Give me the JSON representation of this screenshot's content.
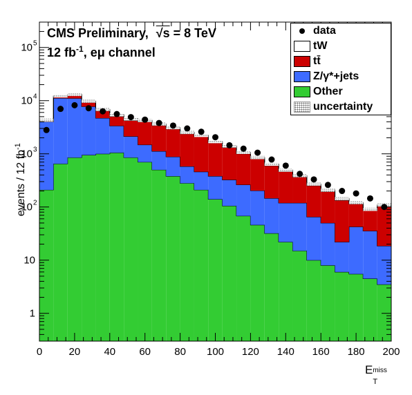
{
  "header": {
    "title_left": "CMS Preliminary,",
    "title_sqrt": "√s",
    "title_right": "= 8 TeV",
    "lumi": "12 fb",
    "lumi_exp": "-1",
    "channel": ", eμ channel"
  },
  "axes": {
    "ylabel": "events / 12 fb",
    "ylabel_exp": "-1",
    "xlabel_main": "E",
    "xlabel_sub": "T",
    "xlabel_sup": "miss"
  },
  "legend": {
    "items": [
      {
        "label": "data",
        "key": "marker"
      },
      {
        "label": "tW",
        "key": "box",
        "color": "#ffffff"
      },
      {
        "label": "tt̄",
        "key": "box",
        "color": "#cc0000"
      },
      {
        "label": "Z/γ*+jets",
        "key": "box",
        "color": "#3d6bff"
      },
      {
        "label": "Other",
        "key": "box",
        "color": "#33cc33"
      },
      {
        "label": "uncertainty",
        "key": "hatch"
      }
    ]
  },
  "chart_data": {
    "type": "bar",
    "title": "CMS Preliminary, √s = 8 TeV",
    "xlabel": "E_T^miss",
    "ylabel": "events / 12 fb^-1",
    "xlim": [
      0,
      200
    ],
    "ylim": [
      0.3,
      300000
    ],
    "yscale": "log",
    "bin_edges": [
      0,
      8,
      16,
      24,
      32,
      40,
      48,
      56,
      64,
      72,
      80,
      88,
      96,
      104,
      112,
      120,
      128,
      136,
      144,
      152,
      160,
      168,
      176,
      184,
      192,
      200
    ],
    "stack_order": [
      "Other",
      "Z/γ*+jets",
      "tt̄",
      "tW"
    ],
    "series": [
      {
        "name": "Other",
        "color": "#33cc33",
        "values": [
          210,
          650,
          850,
          950,
          1000,
          1050,
          850,
          700,
          500,
          380,
          280,
          210,
          140,
          105,
          68,
          46,
          32,
          22,
          15,
          10,
          8,
          6,
          5.5,
          4.5,
          3.5
        ]
      },
      {
        "name": "Z/γ*+jets",
        "color": "#3d6bff",
        "values": [
          3800,
          10500,
          10200,
          6800,
          3700,
          2300,
          1280,
          780,
          620,
          500,
          300,
          250,
          240,
          220,
          194,
          157,
          114,
          97,
          104,
          55,
          42,
          16,
          37,
          31,
          15
        ]
      },
      {
        "name": "tt̄",
        "color": "#cc0000",
        "values": [
          150,
          700,
          1500,
          1500,
          1700,
          1700,
          2100,
          2500,
          2300,
          2050,
          1800,
          1640,
          1220,
          995,
          740,
          600,
          454,
          346,
          248,
          188,
          145,
          112,
          72,
          50,
          85
        ]
      },
      {
        "name": "tW",
        "color": "#ffffff",
        "values": [
          140,
          450,
          550,
          550,
          450,
          400,
          350,
          280,
          230,
          180,
          150,
          120,
          100,
          90,
          68,
          50,
          40,
          30,
          23,
          17,
          13,
          10,
          7,
          5,
          6
        ]
      }
    ],
    "data_points": {
      "name": "data",
      "x": [
        4,
        12,
        20,
        28,
        36,
        44,
        52,
        60,
        68,
        76,
        84,
        92,
        100,
        108,
        116,
        124,
        132,
        140,
        148,
        156,
        164,
        172,
        180,
        188,
        196
      ],
      "y": [
        2800,
        7000,
        8200,
        7200,
        6300,
        5600,
        4900,
        4400,
        3800,
        3400,
        3000,
        2600,
        2050,
        1450,
        1250,
        1050,
        780,
        600,
        420,
        330,
        260,
        200,
        180,
        145,
        100
      ]
    },
    "x_ticks": [
      "0",
      "20",
      "40",
      "60",
      "80",
      "100",
      "120",
      "140",
      "160",
      "180",
      "200"
    ],
    "y_ticks": [
      {
        "v": 1,
        "label": "1"
      },
      {
        "v": 10,
        "label": "10"
      },
      {
        "v": 100,
        "label": "10",
        "exp": "2"
      },
      {
        "v": 1000,
        "label": "10",
        "exp": "3"
      },
      {
        "v": 10000,
        "label": "10",
        "exp": "4"
      },
      {
        "v": 100000,
        "label": "10",
        "exp": "5"
      }
    ],
    "legend_position": "top-right",
    "grid": false
  }
}
